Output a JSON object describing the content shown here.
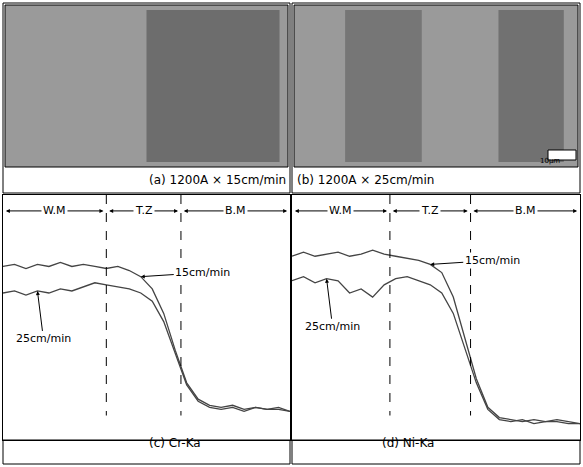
{
  "micrographs": [
    {
      "caption": "(a) 1200A × 15cm/min"
    },
    {
      "caption": "(b) 1200A × 25cm/min"
    }
  ],
  "scale_bar": "10μm",
  "chart_data": [
    {
      "type": "line",
      "title": "(c) Cr-Ka",
      "regions": [
        "W.M",
        "T.Z",
        "B.M"
      ],
      "boundaries": [
        36,
        62
      ],
      "xlim": [
        0,
        100
      ],
      "ylim": [
        0,
        120
      ],
      "tick_labels": false,
      "x": [
        0,
        4,
        8,
        12,
        16,
        20,
        24,
        28,
        32,
        36,
        40,
        44,
        48,
        52,
        56,
        60,
        64,
        68,
        72,
        76,
        80,
        84,
        88,
        92,
        96,
        100
      ],
      "series": [
        {
          "name": "15cm/min",
          "color": "#444444",
          "values": [
            85,
            86,
            84,
            86,
            85,
            87,
            85,
            86,
            85,
            84,
            85,
            83,
            80,
            74,
            62,
            44,
            28,
            20,
            17,
            16,
            17,
            15,
            16,
            15,
            16,
            14
          ]
        },
        {
          "name": "25cm/min",
          "color": "#444444",
          "values": [
            72,
            73,
            71,
            73,
            72,
            74,
            73,
            75,
            77,
            76,
            75,
            74,
            72,
            68,
            58,
            42,
            27,
            19,
            16,
            15,
            16,
            14,
            16,
            15,
            15,
            14
          ]
        }
      ]
    },
    {
      "type": "line",
      "title": "(d) Ni-Ka",
      "regions": [
        "W.M",
        "T.Z",
        "B.M"
      ],
      "boundaries": [
        34,
        62
      ],
      "xlim": [
        0,
        100
      ],
      "ylim": [
        0,
        120
      ],
      "tick_labels": false,
      "x": [
        0,
        4,
        8,
        12,
        16,
        20,
        24,
        28,
        32,
        36,
        40,
        44,
        48,
        52,
        56,
        60,
        64,
        68,
        72,
        76,
        80,
        84,
        88,
        92,
        96,
        100
      ],
      "series": [
        {
          "name": "15cm/min",
          "color": "#444444",
          "values": [
            90,
            92,
            90,
            91,
            92,
            90,
            91,
            93,
            91,
            90,
            89,
            88,
            86,
            82,
            70,
            50,
            30,
            16,
            11,
            10,
            9,
            10,
            9,
            10,
            9,
            8
          ]
        },
        {
          "name": "25cm/min",
          "color": "#444444",
          "values": [
            78,
            80,
            77,
            79,
            78,
            72,
            74,
            70,
            76,
            79,
            80,
            78,
            76,
            72,
            62,
            45,
            28,
            15,
            10,
            9,
            10,
            8,
            9,
            9,
            8,
            8
          ]
        }
      ]
    }
  ]
}
